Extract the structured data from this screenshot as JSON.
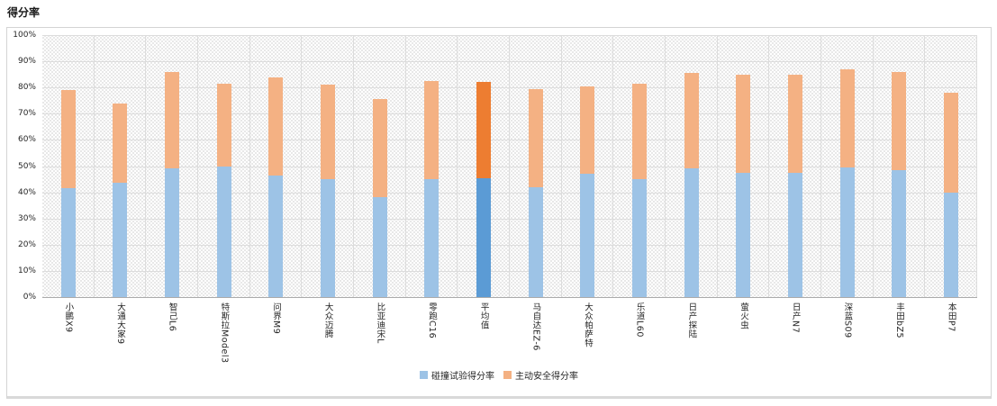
{
  "title": "得分率",
  "chart_data": {
    "type": "bar",
    "stacked": true,
    "orientation": "vertical",
    "title": "得分率",
    "xlabel": "",
    "ylabel": "",
    "ylim": [
      0,
      100
    ],
    "y_unit": "%",
    "y_ticks": [
      "0%",
      "10%",
      "20%",
      "30%",
      "40%",
      "50%",
      "60%",
      "70%",
      "80%",
      "90%",
      "100%"
    ],
    "grid": true,
    "legend_position": "bottom",
    "categories": [
      "小鹏X9",
      "大通大家9",
      "智己L6",
      "特斯拉Model3",
      "问界M9",
      "大众迈腾",
      "比亚迪宋L",
      "零跑C16",
      "平均值",
      "马自达EZ-6",
      "大众帕萨特",
      "乐道L60",
      "日产探陆",
      "萤火虫",
      "日产N7",
      "深蓝S09",
      "丰田bZ5",
      "本田P7"
    ],
    "series": [
      {
        "name": "碰撞试验得分率",
        "color": "#9DC3E6",
        "highlight_color": "#5B9BD5",
        "values": [
          41.5,
          43.5,
          49,
          50,
          46.5,
          45,
          38,
          45,
          45.5,
          42,
          47,
          45,
          49,
          47.5,
          47.5,
          49.5,
          48.5,
          40
        ]
      },
      {
        "name": "主动安全得分率",
        "color": "#F4B183",
        "highlight_color": "#ED7D31",
        "values": [
          37.5,
          30.5,
          37,
          31.5,
          37.5,
          36,
          37.5,
          37.5,
          36.5,
          37.5,
          33.5,
          36.5,
          36.5,
          37.5,
          37.5,
          37.5,
          37.5,
          38
        ]
      }
    ],
    "totals": [
      79,
      74,
      86,
      81.5,
      84,
      81,
      75.5,
      82.5,
      82,
      79.5,
      80.5,
      81.5,
      85.5,
      85,
      85,
      87,
      86,
      78
    ],
    "highlight_category": "平均值",
    "highlight_index": 8
  },
  "colors": {
    "bar_blue": "#9DC3E6",
    "bar_orange": "#F4B183",
    "avg_blue": "#5B9BD5",
    "avg_orange": "#ED7D31",
    "gridline": "#DCDCDC",
    "axis_line": "#ABABAB",
    "frame_border": "#D4D4D4"
  }
}
